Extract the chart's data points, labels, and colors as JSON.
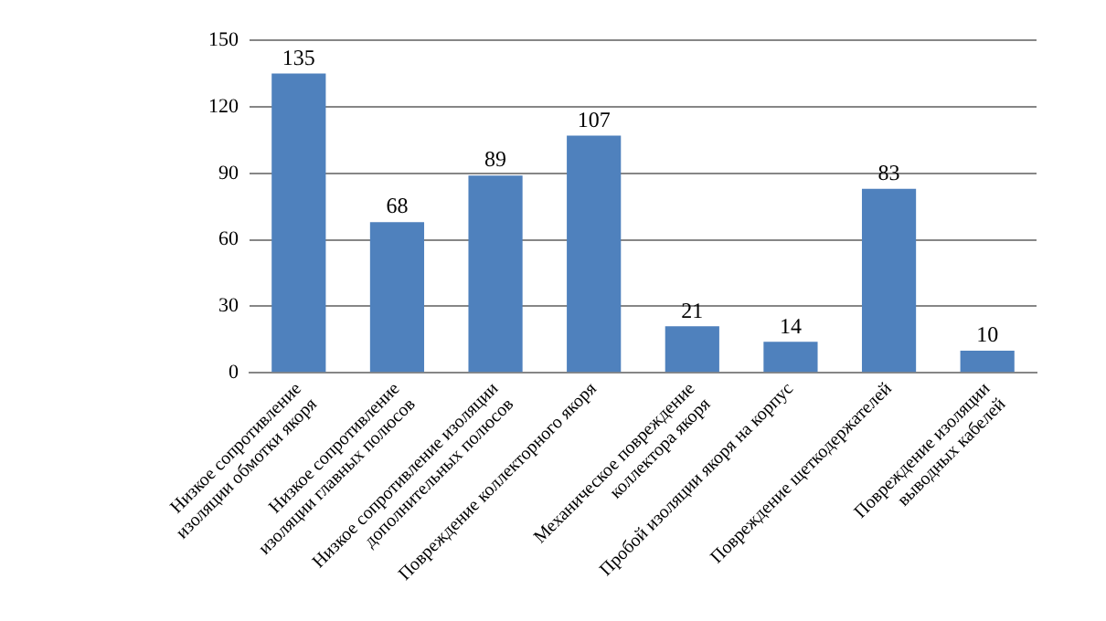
{
  "chart_data": {
    "type": "bar",
    "categories": [
      "Низкое сопротивление изоляции обмотки якоря",
      "Низкое сопротивление изоляции главных полюсов",
      "Низкое сопротивление изоляции дополнительных полюсов",
      "Повреждение коллекторного якоря",
      "Механическое повреждение коллектора якоря",
      "Пробой изоляции якоря на корпус",
      "Повреждение щеткодержателей",
      "Повреждение изоляции выводных кабелей"
    ],
    "values": [
      135,
      68,
      89,
      107,
      21,
      14,
      83,
      10
    ],
    "color": "#4f81bd",
    "ylim": [
      0,
      150
    ],
    "yticks": [
      0,
      30,
      60,
      90,
      120,
      150
    ],
    "grid": "y",
    "data_labels": true,
    "legend": false
  }
}
